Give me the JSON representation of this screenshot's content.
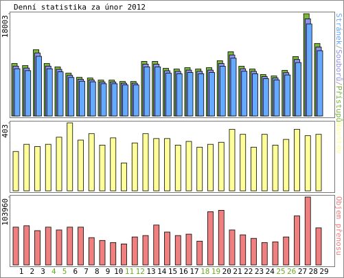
{
  "chart_data": [
    {
      "type": "bar",
      "title": "Denní statistika za únor 2012",
      "legend_separator": "/",
      "series": [
        {
          "name": "Stránek",
          "color": "#66aaff",
          "values": [
            8320,
            7990,
            10510,
            8320,
            7780,
            6790,
            6130,
            6020,
            5690,
            5690,
            5470,
            5470,
            8650,
            8650,
            7550,
            7440,
            7660,
            7440,
            7660,
            8760,
            10180,
            7880,
            7440,
            6570,
            6350,
            7230,
            9410,
            16200,
            11490
          ]
        },
        {
          "name": "Souborů",
          "color": "#9090ee",
          "values": [
            8780,
            8440,
            11100,
            8780,
            8210,
            7160,
            6470,
            6360,
            6000,
            6000,
            5780,
            5780,
            9130,
            9130,
            7970,
            7860,
            8080,
            7860,
            8080,
            9240,
            10740,
            8320,
            7860,
            6940,
            6700,
            7630,
            9940,
            17100,
            12130
          ]
        },
        {
          "name": "Přístupů",
          "color": "#7ab83c",
          "values": [
            9240,
            8880,
            11680,
            9240,
            8640,
            7540,
            6810,
            6690,
            6320,
            6320,
            6080,
            6080,
            9610,
            9610,
            8390,
            8270,
            8510,
            8270,
            8510,
            9730,
            11310,
            8760,
            8270,
            7300,
            7050,
            8030,
            10460,
            18003,
            12770
          ]
        }
      ],
      "ylim": [
        0,
        18003
      ],
      "yticks": [
        18003
      ]
    },
    {
      "type": "bar",
      "series": [
        {
          "name": "Návštěv",
          "color": "#ffff99",
          "values": [
            233,
            276,
            263,
            276,
            318,
            403,
            301,
            339,
            271,
            314,
            165,
            284,
            339,
            310,
            310,
            271,
            293,
            259,
            276,
            288,
            365,
            335,
            259,
            335,
            271,
            305,
            365,
            327,
            335
          ]
        }
      ],
      "ylim": [
        0,
        403
      ],
      "yticks": [
        403
      ]
    },
    {
      "type": "bar",
      "series": [
        {
          "name": "Objem přenosu",
          "color": "#f08080",
          "values": [
            57877,
            60020,
            52517,
            57877,
            53588,
            57877,
            57877,
            41799,
            37512,
            34297,
            32153,
            42871,
            45014,
            61091,
            50373,
            45014,
            47158,
            36440,
            81456,
            83598,
            53588,
            46086,
            40727,
            34297,
            35368,
            42871,
            75024,
            103960,
            56804
          ]
        }
      ],
      "ylim": [
        0,
        103960
      ],
      "yticks": [
        103960
      ],
      "categories": [
        "1",
        "2",
        "3",
        "4",
        "5",
        "6",
        "7",
        "8",
        "9",
        "10",
        "11",
        "12",
        "13",
        "14",
        "15",
        "16",
        "17",
        "18",
        "19",
        "20",
        "21",
        "22",
        "23",
        "24",
        "25",
        "26",
        "27",
        "28",
        "29"
      ],
      "category_colors": [
        "#000000",
        "#000000",
        "#000000",
        "#6aaa20",
        "#6aaa20",
        "#000000",
        "#000000",
        "#000000",
        "#000000",
        "#000000",
        "#6aaa20",
        "#6aaa20",
        "#000000",
        "#000000",
        "#000000",
        "#000000",
        "#000000",
        "#6aaa20",
        "#6aaa20",
        "#000000",
        "#000000",
        "#000000",
        "#000000",
        "#000000",
        "#6aaa20",
        "#6aaa20",
        "#000000",
        "#000000",
        "#000000"
      ]
    }
  ]
}
